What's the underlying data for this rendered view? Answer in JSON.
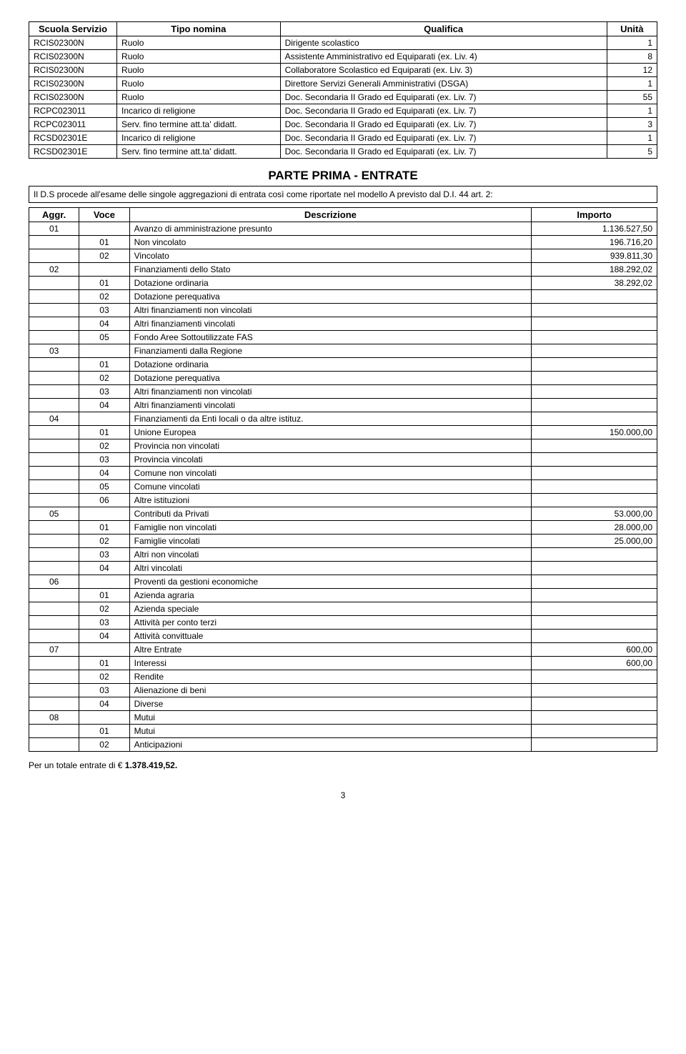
{
  "table1": {
    "headers": {
      "scuola": "Scuola Servizio",
      "tipo": "Tipo nomina",
      "qualifica": "Qualifica",
      "unita": "Unità"
    },
    "rows": [
      {
        "s": "RCIS02300N",
        "t": "Ruolo",
        "q": "Dirigente scolastico",
        "u": "1"
      },
      {
        "s": "RCIS02300N",
        "t": "Ruolo",
        "q": "Assistente Amministrativo ed Equiparati (ex. Liv. 4)",
        "u": "8"
      },
      {
        "s": "RCIS02300N",
        "t": "Ruolo",
        "q": "Collaboratore Scolastico ed Equiparati (ex. Liv. 3)",
        "u": "12"
      },
      {
        "s": "RCIS02300N",
        "t": "Ruolo",
        "q": "Direttore Servizi Generali Amministrativi (DSGA)",
        "u": "1"
      },
      {
        "s": "RCIS02300N",
        "t": "Ruolo",
        "q": "Doc. Secondaria II Grado ed Equiparati (ex. Liv. 7)",
        "u": "55"
      },
      {
        "s": "RCPC023011",
        "t": "Incarico di religione",
        "q": "Doc. Secondaria II Grado ed Equiparati (ex. Liv. 7)",
        "u": "1"
      },
      {
        "s": "RCPC023011",
        "t": "Serv. fino termine att.ta' didatt.",
        "q": "Doc. Secondaria II Grado ed Equiparati (ex. Liv. 7)",
        "u": "3"
      },
      {
        "s": "RCSD02301E",
        "t": "Incarico di religione",
        "q": "Doc. Secondaria II Grado ed Equiparati (ex. Liv. 7)",
        "u": "1"
      },
      {
        "s": "RCSD02301E",
        "t": "Serv. fino termine att.ta' didatt.",
        "q": "Doc. Secondaria II Grado ed Equiparati (ex. Liv. 7)",
        "u": "5"
      }
    ]
  },
  "section": {
    "title": "PARTE PRIMA - ENTRATE",
    "intro": "Il D.S procede all'esame delle singole aggregazioni di entrata così come riportate nel modello A previsto dal D.I. 44 art. 2:"
  },
  "table2": {
    "headers": {
      "aggr": "Aggr.",
      "voce": "Voce",
      "descr": "Descrizione",
      "importo": "Importo"
    },
    "rows": [
      {
        "a": "01",
        "v": "",
        "d": "Avanzo di amministrazione presunto",
        "i": "1.136.527,50"
      },
      {
        "a": "",
        "v": "01",
        "d": "Non vincolato",
        "i": "196.716,20"
      },
      {
        "a": "",
        "v": "02",
        "d": "Vincolato",
        "i": "939.811,30"
      },
      {
        "a": "02",
        "v": "",
        "d": "Finanziamenti dello Stato",
        "i": "188.292,02"
      },
      {
        "a": "",
        "v": "01",
        "d": "Dotazione ordinaria",
        "i": "38.292,02"
      },
      {
        "a": "",
        "v": "02",
        "d": "Dotazione perequativa",
        "i": ""
      },
      {
        "a": "",
        "v": "03",
        "d": "Altri finanziamenti non vincolati",
        "i": ""
      },
      {
        "a": "",
        "v": "04",
        "d": "Altri finanziamenti vincolati",
        "i": ""
      },
      {
        "a": "",
        "v": "05",
        "d": "Fondo Aree Sottoutilizzate FAS",
        "i": ""
      },
      {
        "a": "03",
        "v": "",
        "d": "Finanziamenti dalla Regione",
        "i": ""
      },
      {
        "a": "",
        "v": "01",
        "d": "Dotazione ordinaria",
        "i": ""
      },
      {
        "a": "",
        "v": "02",
        "d": "Dotazione perequativa",
        "i": ""
      },
      {
        "a": "",
        "v": "03",
        "d": "Altri finanziamenti non vincolati",
        "i": ""
      },
      {
        "a": "",
        "v": "04",
        "d": "Altri finanziamenti vincolati",
        "i": ""
      },
      {
        "a": "04",
        "v": "",
        "d": "Finanziamenti da Enti locali o da altre istituz.",
        "i": ""
      },
      {
        "a": "",
        "v": "01",
        "d": "Unione Europea",
        "i": "150.000,00"
      },
      {
        "a": "",
        "v": "02",
        "d": "Provincia non vincolati",
        "i": ""
      },
      {
        "a": "",
        "v": "03",
        "d": "Provincia vincolati",
        "i": ""
      },
      {
        "a": "",
        "v": "04",
        "d": "Comune non vincolati",
        "i": ""
      },
      {
        "a": "",
        "v": "05",
        "d": "Comune vincolati",
        "i": ""
      },
      {
        "a": "",
        "v": "06",
        "d": "Altre istituzioni",
        "i": ""
      },
      {
        "a": "05",
        "v": "",
        "d": "Contributi da Privati",
        "i": "53.000,00"
      },
      {
        "a": "",
        "v": "01",
        "d": "Famiglie non vincolati",
        "i": "28.000,00"
      },
      {
        "a": "",
        "v": "02",
        "d": "Famiglie vincolati",
        "i": "25.000,00"
      },
      {
        "a": "",
        "v": "03",
        "d": "Altri non vincolati",
        "i": ""
      },
      {
        "a": "",
        "v": "04",
        "d": "Altri vincolati",
        "i": ""
      },
      {
        "a": "06",
        "v": "",
        "d": "Proventi da gestioni economiche",
        "i": ""
      },
      {
        "a": "",
        "v": "01",
        "d": "Azienda agraria",
        "i": ""
      },
      {
        "a": "",
        "v": "02",
        "d": "Azienda speciale",
        "i": ""
      },
      {
        "a": "",
        "v": "03",
        "d": "Attività per conto terzi",
        "i": ""
      },
      {
        "a": "",
        "v": "04",
        "d": "Attività convittuale",
        "i": ""
      },
      {
        "a": "07",
        "v": "",
        "d": "Altre Entrate",
        "i": "600,00"
      },
      {
        "a": "",
        "v": "01",
        "d": "Interessi",
        "i": "600,00"
      },
      {
        "a": "",
        "v": "02",
        "d": "Rendite",
        "i": ""
      },
      {
        "a": "",
        "v": "03",
        "d": "Alienazione di beni",
        "i": ""
      },
      {
        "a": "",
        "v": "04",
        "d": "Diverse",
        "i": ""
      },
      {
        "a": "08",
        "v": "",
        "d": "Mutui",
        "i": ""
      },
      {
        "a": "",
        "v": "01",
        "d": "Mutui",
        "i": ""
      },
      {
        "a": "",
        "v": "02",
        "d": "Anticipazioni",
        "i": ""
      }
    ]
  },
  "footer": {
    "label": "Per un totale entrate di € ",
    "amount": "1.378.419,52."
  },
  "page_number": "3"
}
